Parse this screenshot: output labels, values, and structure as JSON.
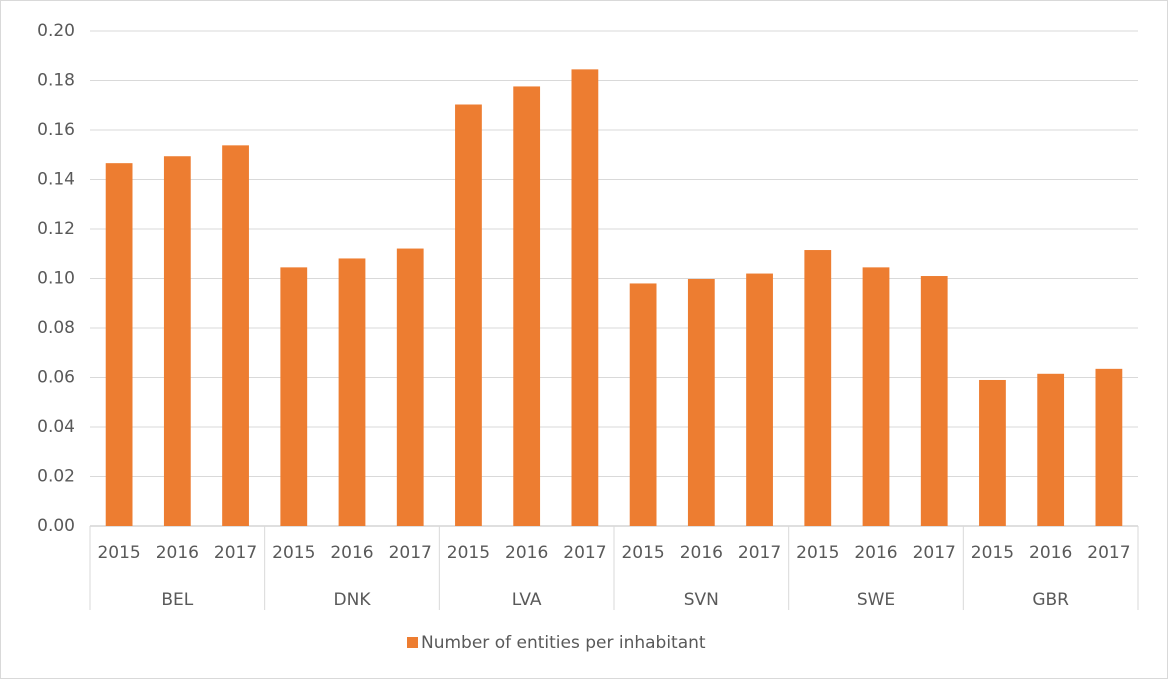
{
  "chart_data": {
    "type": "bar",
    "groups": [
      "BEL",
      "DNK",
      "LVA",
      "SVN",
      "SWE",
      "GBR"
    ],
    "categories": [
      [
        "2015",
        "2016",
        "2017"
      ],
      [
        "2015",
        "2016",
        "2017"
      ],
      [
        "2015",
        "2016",
        "2017"
      ],
      [
        "2015",
        "2016",
        "2017"
      ],
      [
        "2015",
        "2016",
        "2017"
      ],
      [
        "2015",
        "2016",
        "2017"
      ]
    ],
    "series": [
      {
        "name": "Number of entities per inhabitant",
        "color": "#ed7d31",
        "values": [
          [
            0.1466,
            0.1494,
            0.1538
          ],
          [
            0.1045,
            0.1081,
            0.1121
          ],
          [
            0.1703,
            0.1776,
            0.1845
          ],
          [
            0.098,
            0.0998,
            0.102
          ],
          [
            0.1115,
            0.1045,
            0.101
          ],
          [
            0.059,
            0.0615,
            0.0635
          ]
        ]
      }
    ],
    "ylim": [
      0,
      0.2
    ],
    "yticks": [
      {
        "value": 0,
        "label": "0.00"
      },
      {
        "value": 0.02,
        "label": "0.02"
      },
      {
        "value": 0.04,
        "label": "0.04"
      },
      {
        "value": 0.06,
        "label": "0.06"
      },
      {
        "value": 0.08,
        "label": "0.08"
      },
      {
        "value": 0.1,
        "label": "0.10"
      },
      {
        "value": 0.12,
        "label": "0.12"
      },
      {
        "value": 0.14,
        "label": "0.14"
      },
      {
        "value": 0.16,
        "label": "0.16"
      },
      {
        "value": 0.18,
        "label": "0.18"
      },
      {
        "value": 0.2,
        "label": "0.20"
      }
    ],
    "grid": true,
    "legend": "bottom"
  }
}
